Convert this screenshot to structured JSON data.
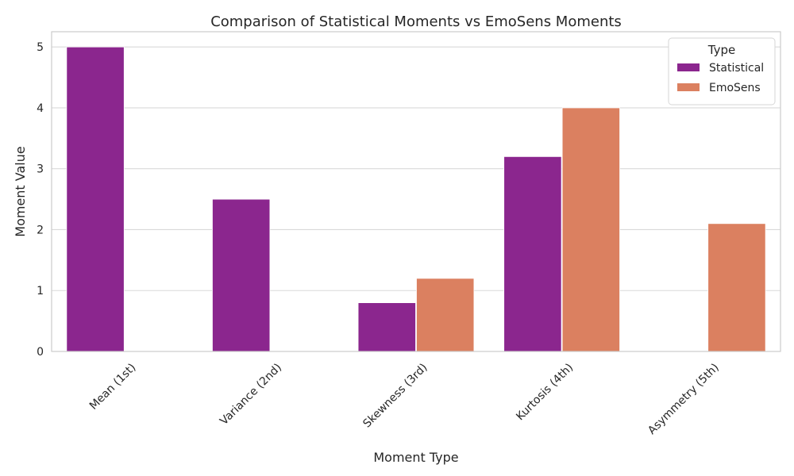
{
  "chart_data": {
    "type": "bar",
    "title": "Comparison of Statistical Moments vs EmoSens Moments",
    "xlabel": "Moment Type",
    "ylabel": "Moment Value",
    "categories": [
      "Mean (1st)",
      "Variance (2nd)",
      "Skewness (3rd)",
      "Kurtosis (4th)",
      "Asymmetry (5th)"
    ],
    "series": [
      {
        "name": "Statistical",
        "color": "#8b268e",
        "values": [
          5.0,
          2.5,
          0.8,
          3.2,
          0
        ]
      },
      {
        "name": "EmoSens",
        "color": "#db8060",
        "values": [
          0,
          0,
          1.2,
          4.0,
          2.1
        ]
      }
    ],
    "ylim": [
      0,
      5.25
    ],
    "yticks": [
      0,
      1,
      2,
      3,
      4,
      5
    ],
    "grid": true,
    "legend": {
      "title": "Type",
      "placement": "top-right"
    },
    "xtick_rotation": 45
  }
}
